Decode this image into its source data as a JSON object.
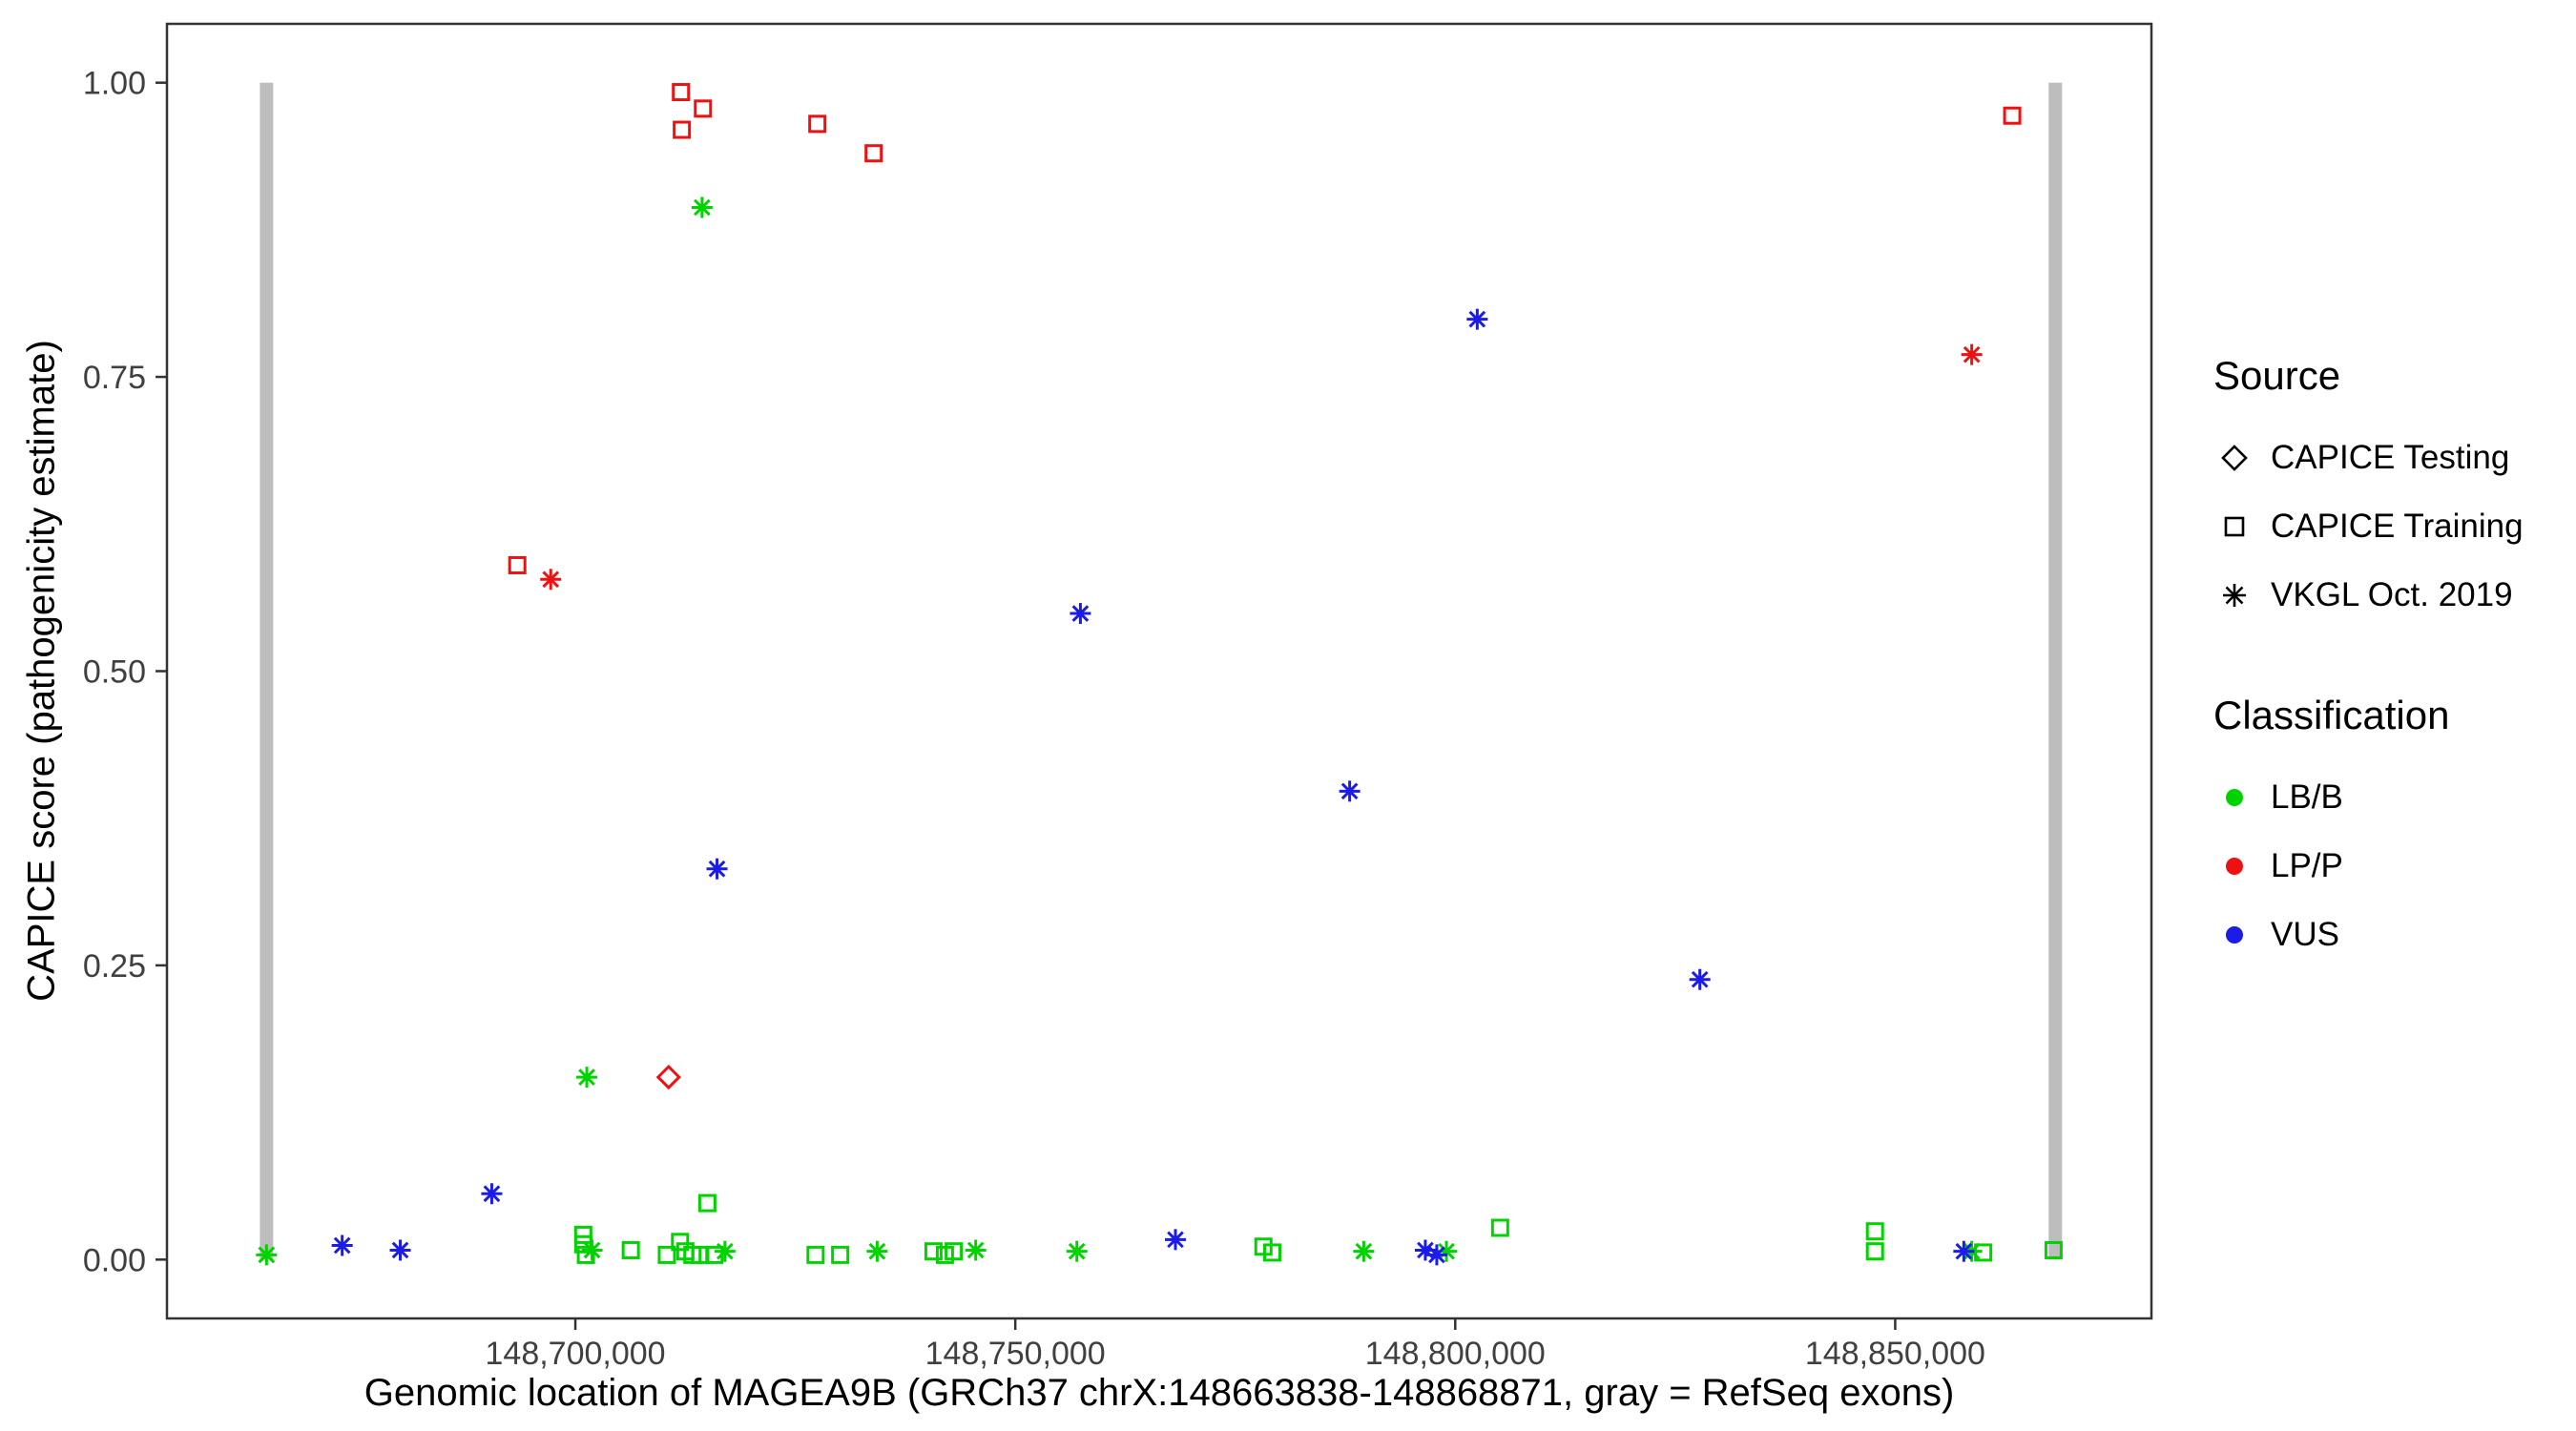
{
  "chart_data": {
    "type": "scatter",
    "title": "",
    "xlabel": "Genomic location of MAGEA9B (GRCh37 chrX:148663838-148868871, gray = RefSeq exons)",
    "ylabel": "CAPICE score (pathogenicity estimate)",
    "xlim": [
      148653586,
      148879123
    ],
    "ylim": [
      -0.05,
      1.05
    ],
    "grid": false,
    "x_ticks": [
      {
        "value": 148700000,
        "label": "148,700,000"
      },
      {
        "value": 148750000,
        "label": "148,750,000"
      },
      {
        "value": 148800000,
        "label": "148,800,000"
      },
      {
        "value": 148850000,
        "label": "148,850,000"
      }
    ],
    "y_ticks": [
      {
        "value": 0.0,
        "label": "0.00"
      },
      {
        "value": 0.25,
        "label": "0.25"
      },
      {
        "value": 0.5,
        "label": "0.50"
      },
      {
        "value": 0.75,
        "label": "0.75"
      },
      {
        "value": 1.0,
        "label": "1.00"
      }
    ],
    "colors": {
      "lb_b": "#00D300",
      "lp_p": "#EE1111",
      "vus": "#1C1CE8",
      "exon": "#BDBDBD",
      "axis": "#333333",
      "tick_text": "#404040"
    },
    "refseq_exons": [
      148664900,
      148868200
    ],
    "series": [
      {
        "name": "CAPICE Training / LP-P",
        "source": "CAPICE Training",
        "classification": "LP/P",
        "marker": "square",
        "color": "#EE1111",
        "points": [
          [
            148712000,
            0.992
          ],
          [
            148714500,
            0.978
          ],
          [
            148712100,
            0.96
          ],
          [
            148727500,
            0.965
          ],
          [
            148733900,
            0.94
          ],
          [
            148693400,
            0.59
          ],
          [
            148863300,
            0.972
          ]
        ]
      },
      {
        "name": "VKGL Oct. 2019 / LP-P",
        "source": "VKGL Oct. 2019",
        "classification": "LP/P",
        "marker": "asterisk",
        "color": "#EE1111",
        "points": [
          [
            148697200,
            0.578
          ],
          [
            148858700,
            0.769
          ]
        ]
      },
      {
        "name": "CAPICE Testing / LP-P",
        "source": "CAPICE Testing",
        "classification": "LP/P",
        "marker": "diamond",
        "color": "#EE1111",
        "points": [
          [
            148710600,
            0.155
          ]
        ]
      },
      {
        "name": "VKGL Oct. 2019 / LB-B",
        "source": "VKGL Oct. 2019",
        "classification": "LB/B",
        "marker": "asterisk",
        "color": "#00D300",
        "points": [
          [
            148714400,
            0.894
          ],
          [
            148701300,
            0.155
          ],
          [
            148664900,
            0.004
          ],
          [
            148701900,
            0.008
          ],
          [
            148717000,
            0.007
          ],
          [
            148734300,
            0.007
          ],
          [
            148745500,
            0.008
          ],
          [
            148757000,
            0.007
          ],
          [
            148789600,
            0.007
          ],
          [
            148799000,
            0.007
          ],
          [
            148858700,
            0.007
          ]
        ]
      },
      {
        "name": "CAPICE Training / LB-B",
        "source": "CAPICE Training",
        "classification": "LB/B",
        "marker": "square",
        "color": "#00D300",
        "points": [
          [
            148700900,
            0.021
          ],
          [
            148700900,
            0.013
          ],
          [
            148701200,
            0.004
          ],
          [
            148706300,
            0.008
          ],
          [
            148710400,
            0.004
          ],
          [
            148711900,
            0.015
          ],
          [
            148712500,
            0.007
          ],
          [
            148713300,
            0.004
          ],
          [
            148714200,
            0.004
          ],
          [
            148715000,
            0.048
          ],
          [
            148715800,
            0.004
          ],
          [
            148727300,
            0.004
          ],
          [
            148730100,
            0.004
          ],
          [
            148740700,
            0.007
          ],
          [
            148742000,
            0.004
          ],
          [
            148743000,
            0.007
          ],
          [
            148778200,
            0.011
          ],
          [
            148779200,
            0.006
          ],
          [
            148805100,
            0.027
          ],
          [
            148847700,
            0.024
          ],
          [
            148847700,
            0.007
          ],
          [
            148860000,
            0.006
          ],
          [
            148868000,
            0.008
          ]
        ]
      },
      {
        "name": "VKGL Oct. 2019 / VUS",
        "source": "VKGL Oct. 2019",
        "classification": "VUS",
        "marker": "asterisk",
        "color": "#1C1CE8",
        "points": [
          [
            148716100,
            0.332
          ],
          [
            148757400,
            0.549
          ],
          [
            148788000,
            0.398
          ],
          [
            148802500,
            0.799
          ],
          [
            148827800,
            0.238
          ],
          [
            148690500,
            0.056
          ],
          [
            148673500,
            0.012
          ],
          [
            148680100,
            0.008
          ],
          [
            148768200,
            0.017
          ],
          [
            148796600,
            0.008
          ],
          [
            148797900,
            0.004
          ],
          [
            148857800,
            0.007
          ]
        ]
      }
    ]
  },
  "legend": {
    "source": {
      "title": "Source",
      "items": [
        {
          "label": "CAPICE Testing",
          "marker": "diamond"
        },
        {
          "label": "CAPICE Training",
          "marker": "square"
        },
        {
          "label": "VKGL Oct. 2019",
          "marker": "asterisk"
        }
      ]
    },
    "classification": {
      "title": "Classification",
      "items": [
        {
          "label": "LB/B",
          "color": "#00D300"
        },
        {
          "label": "LP/P",
          "color": "#EE1111"
        },
        {
          "label": "VUS",
          "color": "#1C1CE8"
        }
      ]
    }
  }
}
